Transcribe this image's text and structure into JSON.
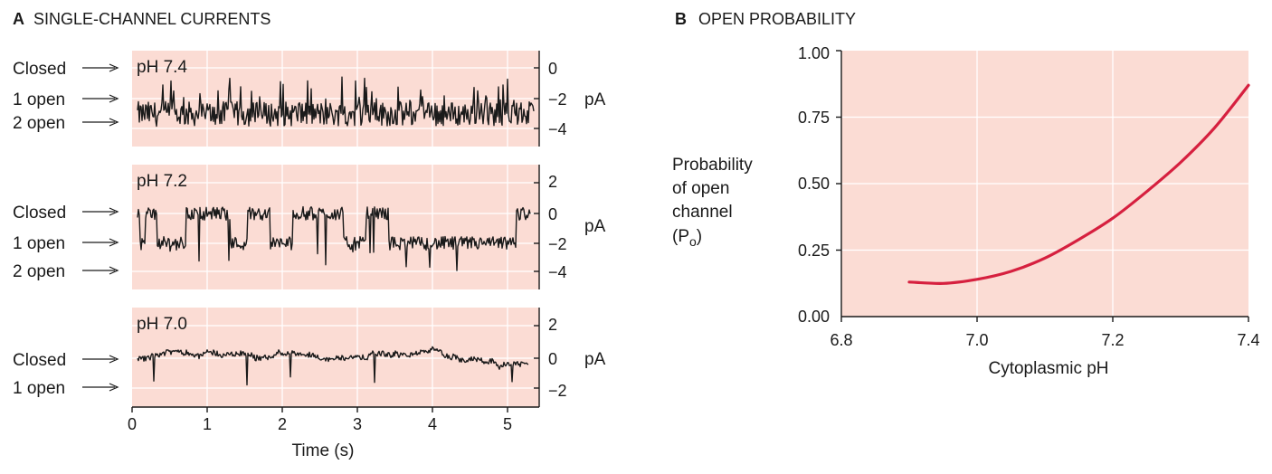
{
  "colors": {
    "panel_bg": "#fbdcd4",
    "grid": "#ffffff",
    "curve": "#d6203f",
    "ink": "#1a1a1a"
  },
  "panel_a": {
    "letter": "A",
    "title": "SINGLE-CHANNEL CURRENTS",
    "xlabel": "Time (s)",
    "x_ticks": [
      "0",
      "1",
      "2",
      "3",
      "4",
      "5"
    ],
    "unit": "pA",
    "traces": [
      {
        "name": "pH 7.4",
        "y_ticks": [
          "0",
          "−2",
          "−4"
        ],
        "state_labels": [
          "Closed",
          "1 open",
          "2 open"
        ]
      },
      {
        "name": "pH 7.2",
        "y_ticks": [
          "2",
          "0",
          "−2",
          "−4"
        ],
        "state_labels": [
          "Closed",
          "1 open",
          "2 open"
        ]
      },
      {
        "name": "pH 7.0",
        "y_ticks": [
          "2",
          "0",
          "−2"
        ],
        "state_labels": [
          "Closed",
          "1 open"
        ]
      }
    ]
  },
  "chart_data": [
    {
      "type": "line",
      "title": "SINGLE-CHANNEL CURRENTS",
      "xlabel": "Time (s)",
      "ylabel": "pA",
      "xlim": [
        0,
        5.4
      ],
      "series": [
        {
          "name": "pH 7.4",
          "ylim": [
            -5,
            1.5
          ],
          "closed_level": 0,
          "levels": [
            0,
            -2,
            -4
          ],
          "mean_current": -3.0
        },
        {
          "name": "pH 7.2",
          "ylim": [
            -5,
            3
          ],
          "closed_level": 0,
          "levels": [
            0,
            -2,
            -4
          ],
          "mean_current": -1.2
        },
        {
          "name": "pH 7.0",
          "ylim": [
            -3,
            3
          ],
          "closed_level": 0,
          "levels": [
            0,
            -2
          ],
          "mean_current": 0.0
        }
      ]
    },
    {
      "type": "line",
      "title": "OPEN PROBABILITY",
      "xlabel": "Cytoplasmic pH",
      "ylabel": "Probability of open channel (Po)",
      "xlim": [
        6.8,
        7.4
      ],
      "ylim": [
        0,
        1
      ],
      "x_ticks": [
        "6.8",
        "7.0",
        "7.2",
        "7.4"
      ],
      "y_ticks": [
        "0.00",
        "0.25",
        "0.50",
        "0.75",
        "1.00"
      ],
      "grid": true,
      "series": [
        {
          "name": "",
          "x": [
            6.9,
            6.95,
            7.0,
            7.05,
            7.1,
            7.15,
            7.2,
            7.25,
            7.3,
            7.35,
            7.4
          ],
          "y": [
            0.13,
            0.125,
            0.14,
            0.17,
            0.22,
            0.29,
            0.37,
            0.47,
            0.58,
            0.71,
            0.87
          ]
        }
      ]
    }
  ],
  "panel_b": {
    "letter": "B",
    "title": "OPEN PROBABILITY",
    "ylabel_lines": [
      "Probability",
      "of open",
      "channel"
    ],
    "ylabel_symbol": "(P",
    "ylabel_sub": "o",
    "ylabel_close": ")"
  }
}
